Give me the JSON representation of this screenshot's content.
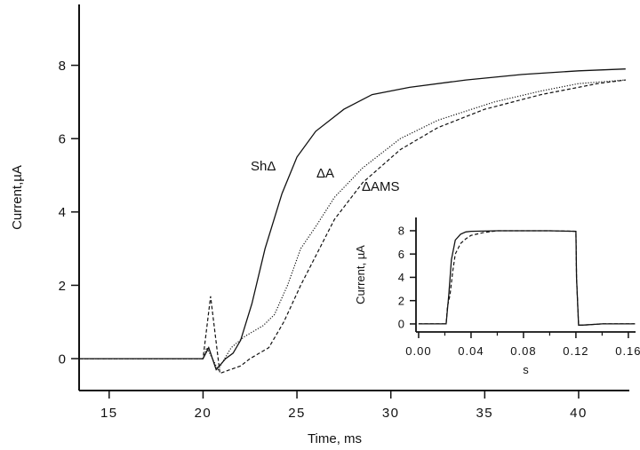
{
  "chart_data": [
    {
      "type": "line",
      "xlabel": "Time, ms",
      "ylabel": "Current,µA",
      "xlim": [
        13.4,
        42.7
      ],
      "ylim": [
        -0.87,
        9.66
      ],
      "xticks": [
        15,
        20,
        25,
        30,
        35,
        40
      ],
      "yticks": [
        0,
        2,
        4,
        6,
        8
      ],
      "grid": false,
      "series": [
        {
          "name": "ShΔ",
          "style": "solid",
          "x": [
            13.4,
            15,
            17,
            19,
            20,
            20.3,
            20.7,
            21.2,
            21.6,
            22,
            22.6,
            23.3,
            24.2,
            25,
            26,
            27.5,
            29,
            31,
            34,
            37,
            40,
            42.5
          ],
          "y": [
            0,
            0,
            0,
            0,
            0,
            0.3,
            -0.3,
            0,
            0.15,
            0.5,
            1.5,
            3,
            4.5,
            5.5,
            6.2,
            6.8,
            7.2,
            7.4,
            7.6,
            7.75,
            7.85,
            7.9
          ]
        },
        {
          "name": "ΔA",
          "style": "dotted",
          "x": [
            13.4,
            15,
            17,
            19,
            20,
            20.2,
            20.8,
            21.5,
            22.2,
            23.2,
            23.8,
            24.5,
            25.2,
            26,
            27,
            28.5,
            30.5,
            32.5,
            35.5,
            38,
            40,
            42.5
          ],
          "y": [
            0,
            0,
            0,
            0,
            0,
            0.3,
            -0.3,
            0.3,
            0.6,
            0.9,
            1.2,
            2,
            3,
            3.6,
            4.4,
            5.2,
            6,
            6.5,
            7,
            7.3,
            7.5,
            7.6
          ]
        },
        {
          "name": "ΔAMS",
          "style": "dashed",
          "x": [
            13.4,
            15,
            17,
            19,
            20,
            20.4,
            20.9,
            22,
            22.5,
            23.5,
            24.3,
            25.2,
            26,
            27,
            28.5,
            30.5,
            32.5,
            35,
            38,
            41,
            42.5
          ],
          "y": [
            0,
            0,
            0,
            0,
            0,
            1.7,
            -0.4,
            -0.2,
            0,
            0.3,
            1,
            2,
            2.8,
            3.8,
            4.8,
            5.7,
            6.3,
            6.8,
            7.2,
            7.5,
            7.6
          ]
        }
      ]
    },
    {
      "type": "line",
      "xlabel": "s",
      "ylabel": "Current, µA",
      "xlim": [
        -0.002,
        0.1655
      ],
      "ylim": [
        -0.69,
        9.14
      ],
      "xticks": [
        "0.00",
        "0.04",
        "0.08",
        "0.12",
        "0.16"
      ],
      "yticks": [
        0,
        2,
        4,
        6,
        8
      ],
      "grid": false,
      "series": [
        {
          "style": "solid",
          "x": [
            0,
            0.021,
            0.023,
            0.025,
            0.028,
            0.032,
            0.036,
            0.04,
            0.06,
            0.1,
            0.12,
            0.1205,
            0.122,
            0.125,
            0.14,
            0.165
          ],
          "y": [
            0,
            0,
            2.5,
            5.5,
            7.2,
            7.7,
            7.9,
            7.95,
            8,
            8,
            7.95,
            4,
            -0.1,
            -0.1,
            0,
            0
          ]
        },
        {
          "style": "dashed",
          "x": [
            0,
            0.021,
            0.022,
            0.024,
            0.026,
            0.028,
            0.032,
            0.036,
            0.04,
            0.05,
            0.06,
            0.1,
            0.12,
            0.1205,
            0.122,
            0.125,
            0.14,
            0.165
          ],
          "y": [
            0,
            0,
            1.5,
            2.5,
            4.5,
            6,
            6.9,
            7.3,
            7.6,
            7.85,
            8,
            8,
            7.95,
            4,
            -0.1,
            -0.1,
            0,
            0
          ]
        }
      ]
    }
  ]
}
